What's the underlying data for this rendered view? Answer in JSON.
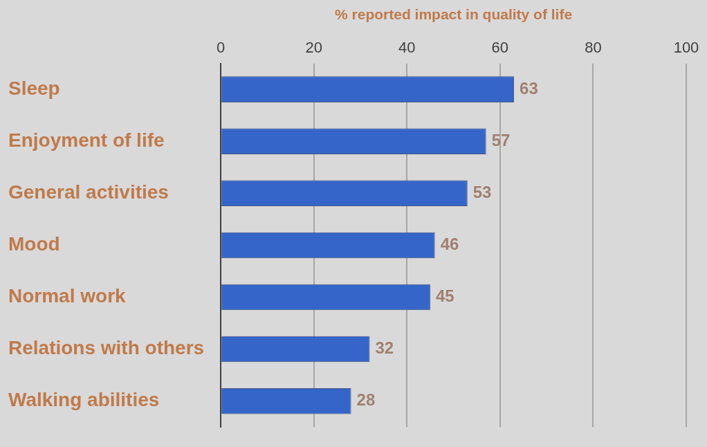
{
  "chart_data": {
    "type": "bar",
    "orientation": "horizontal",
    "xlabel": "% reported impact in quality of life",
    "categories": [
      "Sleep",
      "Enjoyment of life",
      "General activities",
      "Mood",
      "Normal work",
      "Relations with others",
      "Walking abilities"
    ],
    "values": [
      63,
      57,
      53,
      46,
      45,
      32,
      28
    ],
    "color": "#3565c8",
    "xlim": [
      0,
      100
    ],
    "xticks": [
      0,
      20,
      40,
      60,
      80,
      100
    ],
    "grid": "x",
    "data_labels": true
  }
}
